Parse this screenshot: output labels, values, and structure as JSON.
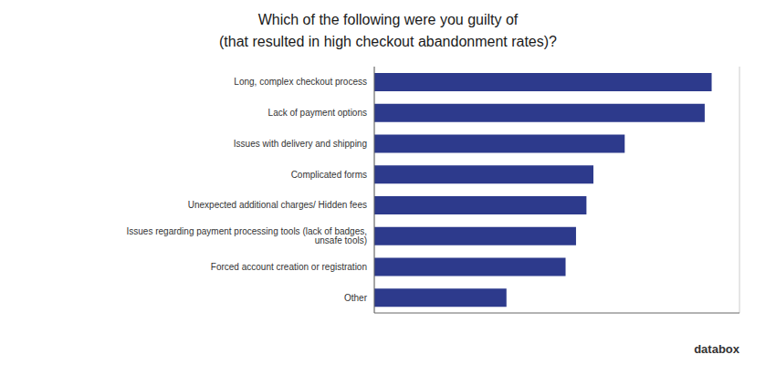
{
  "chart_data": {
    "type": "bar",
    "orientation": "horizontal",
    "title": "Which of the following were you guilty of\n(that resulted in high checkout abandonment rates)?",
    "categories": [
      "Long, complex checkout process",
      "Lack of payment options",
      "Issues with delivery and shipping",
      "Complicated forms",
      "Unexpected additional charges/ Hidden fees",
      "Issues regarding payment processing tools (lack of badges, unsafe tools)",
      "Forced account creation or registration",
      "Other"
    ],
    "values": [
      97,
      95,
      72,
      63,
      61,
      58,
      55,
      38
    ],
    "color": "#2d3a8c",
    "xlim": [
      0,
      105
    ],
    "xticks": [
      0,
      20,
      40,
      60,
      80,
      100
    ],
    "grid": true,
    "tick_labels": "y",
    "annotation": "databox"
  }
}
